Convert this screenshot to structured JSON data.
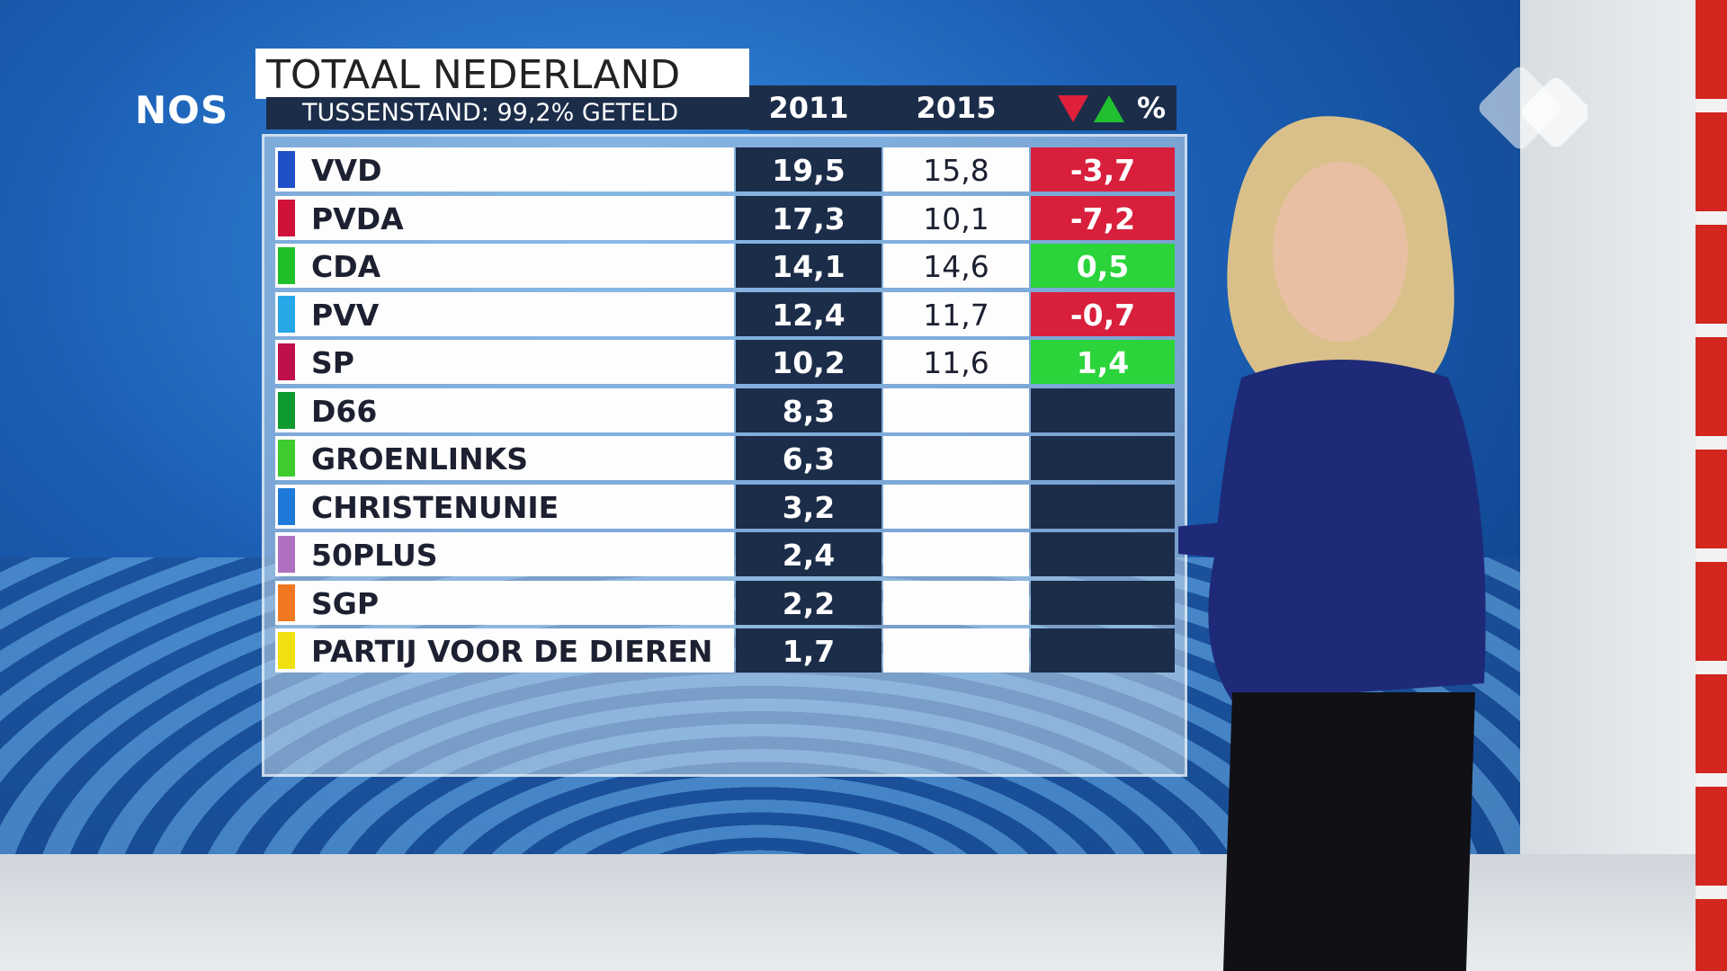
{
  "logo": "NOS",
  "header": {
    "title": "TOTAAL NEDERLAND",
    "subtitle": "TUSSENSTAND: 99,2% GETELD"
  },
  "table": {
    "columns": [
      "2011",
      "2015",
      "%"
    ],
    "rows": [
      {
        "party": "VVD",
        "color": "#1d4fc8",
        "v2011": "19,5",
        "v2015": "15,8",
        "change": "-3,7"
      },
      {
        "party": "PVDA",
        "color": "#d0123a",
        "v2011": "17,3",
        "v2015": "10,1",
        "change": "-7,2"
      },
      {
        "party": "CDA",
        "color": "#1fbf2a",
        "v2011": "14,1",
        "v2015": "14,6",
        "change": "0,5"
      },
      {
        "party": "PVV",
        "color": "#26a8e8",
        "v2011": "12,4",
        "v2015": "11,7",
        "change": "-0,7"
      },
      {
        "party": "SP",
        "color": "#c0104a",
        "v2011": "10,2",
        "v2015": "11,6",
        "change": "1,4"
      },
      {
        "party": "D66",
        "color": "#0e9a2e",
        "v2011": "8,3",
        "v2015": null,
        "change": null
      },
      {
        "party": "GROENLINKS",
        "color": "#3ecb2e",
        "v2011": "6,3",
        "v2015": null,
        "change": null
      },
      {
        "party": "CHRISTENUNIE",
        "color": "#1e7ad8",
        "v2011": "3,2",
        "v2015": null,
        "change": null
      },
      {
        "party": "50PLUS",
        "color": "#b070c0",
        "v2011": "2,4",
        "v2015": null,
        "change": null
      },
      {
        "party": "SGP",
        "color": "#f07820",
        "v2011": "2,2",
        "v2015": null,
        "change": null
      },
      {
        "party": "PARTIJ VOOR DE DIEREN",
        "color": "#f0e010",
        "v2011": "1,7",
        "v2015": null,
        "change": null
      }
    ]
  }
}
